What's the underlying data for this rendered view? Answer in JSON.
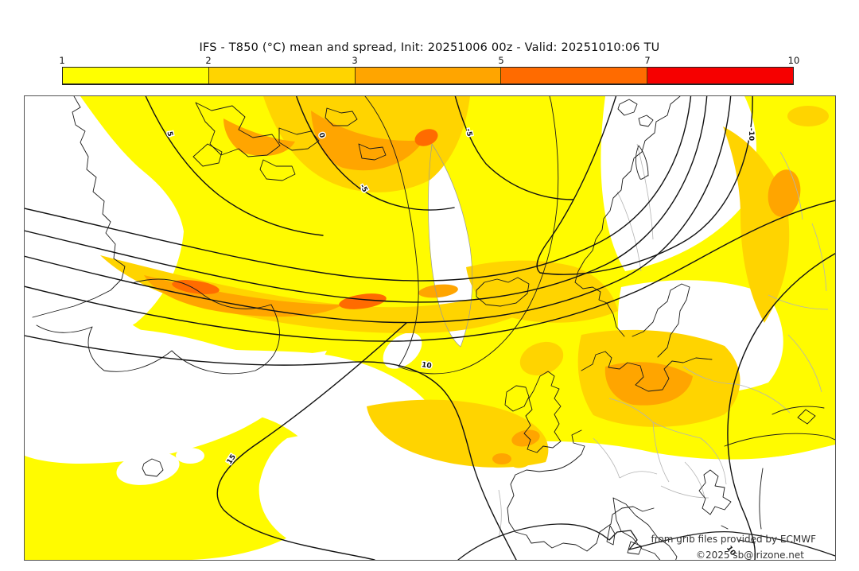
{
  "header": {
    "title": "IFS - T850 (°C) mean and spread, Init: 20251006 00z - Valid: 20251010:06 TU"
  },
  "colorbar": {
    "ticks": [
      "1",
      "2",
      "3",
      "5",
      "7",
      "10"
    ],
    "segments": [
      {
        "range": "1-2",
        "color": "#FFFF00"
      },
      {
        "range": "2-3",
        "color": "#FFD400"
      },
      {
        "range": "3-5",
        "color": "#FFA500"
      },
      {
        "range": "5-7",
        "color": "#FF6B00"
      },
      {
        "range": "7-10",
        "color": "#F60000"
      }
    ]
  },
  "map": {
    "fill_colors": {
      "spread_1_2": "#FFFB00",
      "spread_2_3": "#FFD400",
      "spread_3_5": "#FFA500",
      "spread_5_7": "#FF6B00",
      "no_shading": "#FFFFFF"
    },
    "contour_labels": [
      {
        "text": "5"
      },
      {
        "text": "0"
      },
      {
        "text": "-5"
      },
      {
        "text": "-5"
      },
      {
        "text": "10"
      },
      {
        "text": "15"
      },
      {
        "text": "-10"
      },
      {
        "text": "10"
      }
    ],
    "attribution": {
      "line1": "from grib files provided by ECMWF",
      "line2": "©2025 sb@irizone.net"
    }
  }
}
